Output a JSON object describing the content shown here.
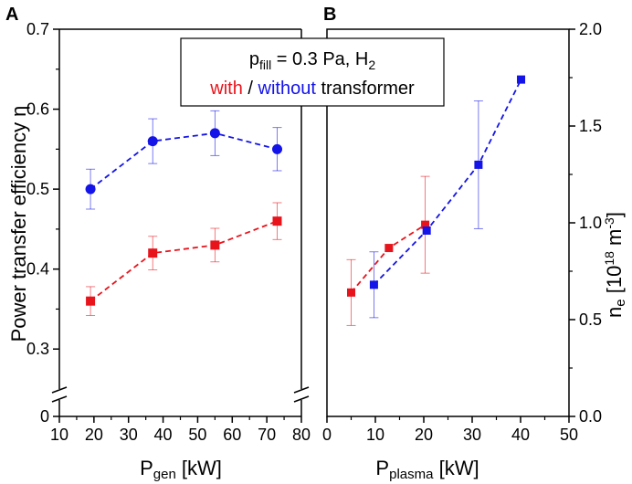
{
  "figure": {
    "legend": {
      "line1_prefix": "p",
      "line1_sub": "fill",
      "line1_mid": " = 0.3 Pa, H",
      "line1_sub2": "2",
      "with_word": "with",
      "separator": " / ",
      "without_word": "without",
      "suffix": " transformer",
      "with_color": "#e8141c",
      "without_color": "#1414e8"
    }
  },
  "chart_data": [
    {
      "type": "line",
      "panel_label": "A",
      "xlabel_main": "P",
      "xlabel_sub": "gen",
      "xlabel_unit": " [kW]",
      "ylabel": "Power transfer efficiency η",
      "xlim": [
        10,
        80
      ],
      "ylim_main": [
        0.25,
        0.7
      ],
      "y_break_label": "0",
      "xticks": [
        "10",
        "20",
        "30",
        "40",
        "50",
        "60",
        "70",
        "80"
      ],
      "yticks": [
        "0.3",
        "0.4",
        "0.5",
        "0.6",
        "0.7"
      ],
      "series": [
        {
          "name": "without transformer",
          "color": "#1414e8",
          "marker": "circle",
          "x": [
            19,
            37,
            55,
            73
          ],
          "y": [
            0.5,
            0.56,
            0.57,
            0.55
          ],
          "err": [
            0.025,
            0.028,
            0.028,
            0.027
          ]
        },
        {
          "name": "with transformer",
          "color": "#e8141c",
          "marker": "square",
          "x": [
            19,
            37,
            55,
            73
          ],
          "y": [
            0.36,
            0.42,
            0.43,
            0.46
          ],
          "err": [
            0.018,
            0.021,
            0.021,
            0.023
          ]
        }
      ]
    },
    {
      "type": "line",
      "panel_label": "B",
      "xlabel_main": "P",
      "xlabel_sub": "plasma",
      "xlabel_unit": " [kW]",
      "ylabel_main": "n",
      "ylabel_sub": "e",
      "ylabel_unit_a": " [10",
      "ylabel_sup1": "18",
      "ylabel_unit_b": " m",
      "ylabel_sup2": "-3",
      "ylabel_unit_c": "]",
      "xlim": [
        0,
        50
      ],
      "ylim": [
        0,
        2.0
      ],
      "xticks": [
        "0",
        "10",
        "20",
        "30",
        "40",
        "50"
      ],
      "yticks": [
        "0.0",
        "0.5",
        "1.0",
        "1.5",
        "2.0"
      ],
      "series": [
        {
          "name": "with transformer",
          "color": "#e8141c",
          "marker": "square",
          "x": [
            5,
            12.8,
            20.3
          ],
          "y": [
            0.64,
            0.87,
            0.99
          ],
          "err": [
            0.17,
            0,
            0.25
          ]
        },
        {
          "name": "without transformer",
          "color": "#1414e8",
          "marker": "square",
          "x": [
            9.7,
            20.6,
            31.3,
            40.1
          ],
          "y": [
            0.68,
            0.96,
            1.3,
            1.74
          ],
          "err": [
            0.17,
            0,
            0.33,
            0
          ]
        }
      ]
    }
  ]
}
